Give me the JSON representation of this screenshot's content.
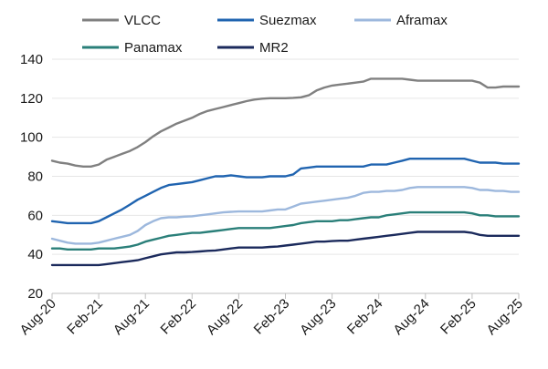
{
  "chart_data": {
    "type": "line",
    "title": "",
    "xlabel": "",
    "ylabel": "",
    "ylim": [
      20,
      140
    ],
    "yticks": [
      20,
      40,
      60,
      80,
      100,
      120,
      140
    ],
    "grid": true,
    "legend_position": "top",
    "x_tick_labels": [
      "Aug-20",
      "Feb-21",
      "Aug-21",
      "Feb-22",
      "Aug-22",
      "Feb-23",
      "Aug-23",
      "Feb-24",
      "Aug-24",
      "Feb-25",
      "Aug-25"
    ],
    "x_range": [
      0,
      60
    ],
    "series": [
      {
        "name": "VLCC",
        "color": "#808080",
        "points": [
          [
            0,
            88
          ],
          [
            1,
            87
          ],
          [
            2,
            86.5
          ],
          [
            3,
            85.5
          ],
          [
            4,
            85
          ],
          [
            5,
            85
          ],
          [
            6,
            86
          ],
          [
            7,
            88.5
          ],
          [
            8,
            90
          ],
          [
            9,
            91.5
          ],
          [
            10,
            93
          ],
          [
            11,
            95
          ],
          [
            12,
            97.5
          ],
          [
            13,
            100.5
          ],
          [
            14,
            103
          ],
          [
            15,
            105
          ],
          [
            16,
            107
          ],
          [
            17,
            108.5
          ],
          [
            18,
            110
          ],
          [
            19,
            112
          ],
          [
            20,
            113.5
          ],
          [
            21,
            114.5
          ],
          [
            22,
            115.5
          ],
          [
            23,
            116.5
          ],
          [
            24,
            117.5
          ],
          [
            25,
            118.5
          ],
          [
            26,
            119.3
          ],
          [
            27,
            119.8
          ],
          [
            28,
            120
          ],
          [
            29,
            120
          ],
          [
            30,
            120
          ],
          [
            31,
            120.2
          ],
          [
            32,
            120.5
          ],
          [
            33,
            121.5
          ],
          [
            34,
            124
          ],
          [
            35,
            125.5
          ],
          [
            36,
            126.5
          ],
          [
            37,
            127
          ],
          [
            38,
            127.5
          ],
          [
            39,
            128
          ],
          [
            40,
            128.5
          ],
          [
            41,
            130
          ],
          [
            42,
            130
          ],
          [
            43,
            130
          ],
          [
            44,
            130
          ],
          [
            45,
            130
          ],
          [
            46,
            129.5
          ],
          [
            47,
            129
          ],
          [
            48,
            129
          ],
          [
            49,
            129
          ],
          [
            50,
            129
          ],
          [
            51,
            129
          ],
          [
            52,
            129
          ],
          [
            53,
            129
          ],
          [
            54,
            129
          ],
          [
            55,
            128
          ],
          [
            56,
            125.5
          ],
          [
            57,
            125.5
          ],
          [
            58,
            126
          ],
          [
            59,
            126
          ],
          [
            60,
            126
          ]
        ]
      },
      {
        "name": "Suezmax",
        "color": "#2064B0",
        "points": [
          [
            0,
            57
          ],
          [
            1,
            56.5
          ],
          [
            2,
            56
          ],
          [
            3,
            56
          ],
          [
            4,
            56
          ],
          [
            5,
            56
          ],
          [
            6,
            57
          ],
          [
            7,
            59
          ],
          [
            8,
            61
          ],
          [
            9,
            63
          ],
          [
            10,
            65.5
          ],
          [
            11,
            68
          ],
          [
            12,
            70
          ],
          [
            13,
            72
          ],
          [
            14,
            74
          ],
          [
            15,
            75.5
          ],
          [
            16,
            76
          ],
          [
            17,
            76.5
          ],
          [
            18,
            77
          ],
          [
            19,
            78
          ],
          [
            20,
            79
          ],
          [
            21,
            80
          ],
          [
            22,
            80
          ],
          [
            23,
            80.5
          ],
          [
            24,
            80
          ],
          [
            25,
            79.5
          ],
          [
            26,
            79.5
          ],
          [
            27,
            79.5
          ],
          [
            28,
            80
          ],
          [
            29,
            80
          ],
          [
            30,
            80
          ],
          [
            31,
            81
          ],
          [
            32,
            84
          ],
          [
            33,
            84.5
          ],
          [
            34,
            85
          ],
          [
            35,
            85
          ],
          [
            36,
            85
          ],
          [
            37,
            85
          ],
          [
            38,
            85
          ],
          [
            39,
            85
          ],
          [
            40,
            85
          ],
          [
            41,
            86
          ],
          [
            42,
            86
          ],
          [
            43,
            86
          ],
          [
            44,
            87
          ],
          [
            45,
            88
          ],
          [
            46,
            89
          ],
          [
            47,
            89
          ],
          [
            48,
            89
          ],
          [
            49,
            89
          ],
          [
            50,
            89
          ],
          [
            51,
            89
          ],
          [
            52,
            89
          ],
          [
            53,
            89
          ],
          [
            54,
            88
          ],
          [
            55,
            87
          ],
          [
            56,
            87
          ],
          [
            57,
            87
          ],
          [
            58,
            86.5
          ],
          [
            59,
            86.5
          ],
          [
            60,
            86.5
          ]
        ]
      },
      {
        "name": "Aframax",
        "color": "#9DB8DD",
        "points": [
          [
            0,
            48
          ],
          [
            1,
            47
          ],
          [
            2,
            46
          ],
          [
            3,
            45.5
          ],
          [
            4,
            45.5
          ],
          [
            5,
            45.5
          ],
          [
            6,
            46
          ],
          [
            7,
            47
          ],
          [
            8,
            48
          ],
          [
            9,
            49
          ],
          [
            10,
            50
          ],
          [
            11,
            52
          ],
          [
            12,
            55
          ],
          [
            13,
            57
          ],
          [
            14,
            58.5
          ],
          [
            15,
            59
          ],
          [
            16,
            59
          ],
          [
            17,
            59.3
          ],
          [
            18,
            59.5
          ],
          [
            19,
            60
          ],
          [
            20,
            60.5
          ],
          [
            21,
            61
          ],
          [
            22,
            61.5
          ],
          [
            23,
            61.8
          ],
          [
            24,
            62
          ],
          [
            25,
            62
          ],
          [
            26,
            62
          ],
          [
            27,
            62
          ],
          [
            28,
            62.5
          ],
          [
            29,
            63
          ],
          [
            30,
            63
          ],
          [
            31,
            64.5
          ],
          [
            32,
            66
          ],
          [
            33,
            66.5
          ],
          [
            34,
            67
          ],
          [
            35,
            67.5
          ],
          [
            36,
            68
          ],
          [
            37,
            68.5
          ],
          [
            38,
            69
          ],
          [
            39,
            70
          ],
          [
            40,
            71.5
          ],
          [
            41,
            72
          ],
          [
            42,
            72
          ],
          [
            43,
            72.5
          ],
          [
            44,
            72.5
          ],
          [
            45,
            73
          ],
          [
            46,
            74
          ],
          [
            47,
            74.5
          ],
          [
            48,
            74.5
          ],
          [
            49,
            74.5
          ],
          [
            50,
            74.5
          ],
          [
            51,
            74.5
          ],
          [
            52,
            74.5
          ],
          [
            53,
            74.5
          ],
          [
            54,
            74
          ],
          [
            55,
            73
          ],
          [
            56,
            73
          ],
          [
            57,
            72.5
          ],
          [
            58,
            72.5
          ],
          [
            59,
            72
          ],
          [
            60,
            72
          ]
        ]
      },
      {
        "name": "Panamax",
        "color": "#2A7F79",
        "points": [
          [
            0,
            43
          ],
          [
            1,
            43
          ],
          [
            2,
            42.5
          ],
          [
            3,
            42.5
          ],
          [
            4,
            42.5
          ],
          [
            5,
            42.5
          ],
          [
            6,
            43
          ],
          [
            7,
            43
          ],
          [
            8,
            43
          ],
          [
            9,
            43.5
          ],
          [
            10,
            44
          ],
          [
            11,
            45
          ],
          [
            12,
            46.5
          ],
          [
            13,
            47.5
          ],
          [
            14,
            48.5
          ],
          [
            15,
            49.5
          ],
          [
            16,
            50
          ],
          [
            17,
            50.5
          ],
          [
            18,
            51
          ],
          [
            19,
            51
          ],
          [
            20,
            51.5
          ],
          [
            21,
            52
          ],
          [
            22,
            52.5
          ],
          [
            23,
            53
          ],
          [
            24,
            53.5
          ],
          [
            25,
            53.5
          ],
          [
            26,
            53.5
          ],
          [
            27,
            53.5
          ],
          [
            28,
            53.5
          ],
          [
            29,
            54
          ],
          [
            30,
            54.5
          ],
          [
            31,
            55
          ],
          [
            32,
            56
          ],
          [
            33,
            56.5
          ],
          [
            34,
            57
          ],
          [
            35,
            57
          ],
          [
            36,
            57
          ],
          [
            37,
            57.5
          ],
          [
            38,
            57.5
          ],
          [
            39,
            58
          ],
          [
            40,
            58.5
          ],
          [
            41,
            59
          ],
          [
            42,
            59
          ],
          [
            43,
            60
          ],
          [
            44,
            60.5
          ],
          [
            45,
            61
          ],
          [
            46,
            61.5
          ],
          [
            47,
            61.5
          ],
          [
            48,
            61.5
          ],
          [
            49,
            61.5
          ],
          [
            50,
            61.5
          ],
          [
            51,
            61.5
          ],
          [
            52,
            61.5
          ],
          [
            53,
            61.5
          ],
          [
            54,
            61
          ],
          [
            55,
            60
          ],
          [
            56,
            60
          ],
          [
            57,
            59.5
          ],
          [
            58,
            59.5
          ],
          [
            59,
            59.5
          ],
          [
            60,
            59.5
          ]
        ]
      },
      {
        "name": "MR2",
        "color": "#1B2A5C",
        "points": [
          [
            0,
            34.5
          ],
          [
            1,
            34.5
          ],
          [
            2,
            34.5
          ],
          [
            3,
            34.5
          ],
          [
            4,
            34.5
          ],
          [
            5,
            34.5
          ],
          [
            6,
            34.5
          ],
          [
            7,
            35
          ],
          [
            8,
            35.5
          ],
          [
            9,
            36
          ],
          [
            10,
            36.5
          ],
          [
            11,
            37
          ],
          [
            12,
            38
          ],
          [
            13,
            39
          ],
          [
            14,
            40
          ],
          [
            15,
            40.5
          ],
          [
            16,
            41
          ],
          [
            17,
            41
          ],
          [
            18,
            41.2
          ],
          [
            19,
            41.5
          ],
          [
            20,
            41.8
          ],
          [
            21,
            42
          ],
          [
            22,
            42.5
          ],
          [
            23,
            43
          ],
          [
            24,
            43.5
          ],
          [
            25,
            43.5
          ],
          [
            26,
            43.5
          ],
          [
            27,
            43.5
          ],
          [
            28,
            43.8
          ],
          [
            29,
            44
          ],
          [
            30,
            44.5
          ],
          [
            31,
            45
          ],
          [
            32,
            45.5
          ],
          [
            33,
            46
          ],
          [
            34,
            46.5
          ],
          [
            35,
            46.5
          ],
          [
            36,
            46.8
          ],
          [
            37,
            47
          ],
          [
            38,
            47
          ],
          [
            39,
            47.5
          ],
          [
            40,
            48
          ],
          [
            41,
            48.5
          ],
          [
            42,
            49
          ],
          [
            43,
            49.5
          ],
          [
            44,
            50
          ],
          [
            45,
            50.5
          ],
          [
            46,
            51
          ],
          [
            47,
            51.5
          ],
          [
            48,
            51.5
          ],
          [
            49,
            51.5
          ],
          [
            50,
            51.5
          ],
          [
            51,
            51.5
          ],
          [
            52,
            51.5
          ],
          [
            53,
            51.5
          ],
          [
            54,
            51
          ],
          [
            55,
            50
          ],
          [
            56,
            49.5
          ],
          [
            57,
            49.5
          ],
          [
            58,
            49.5
          ],
          [
            59,
            49.5
          ],
          [
            60,
            49.5
          ]
        ]
      }
    ]
  }
}
